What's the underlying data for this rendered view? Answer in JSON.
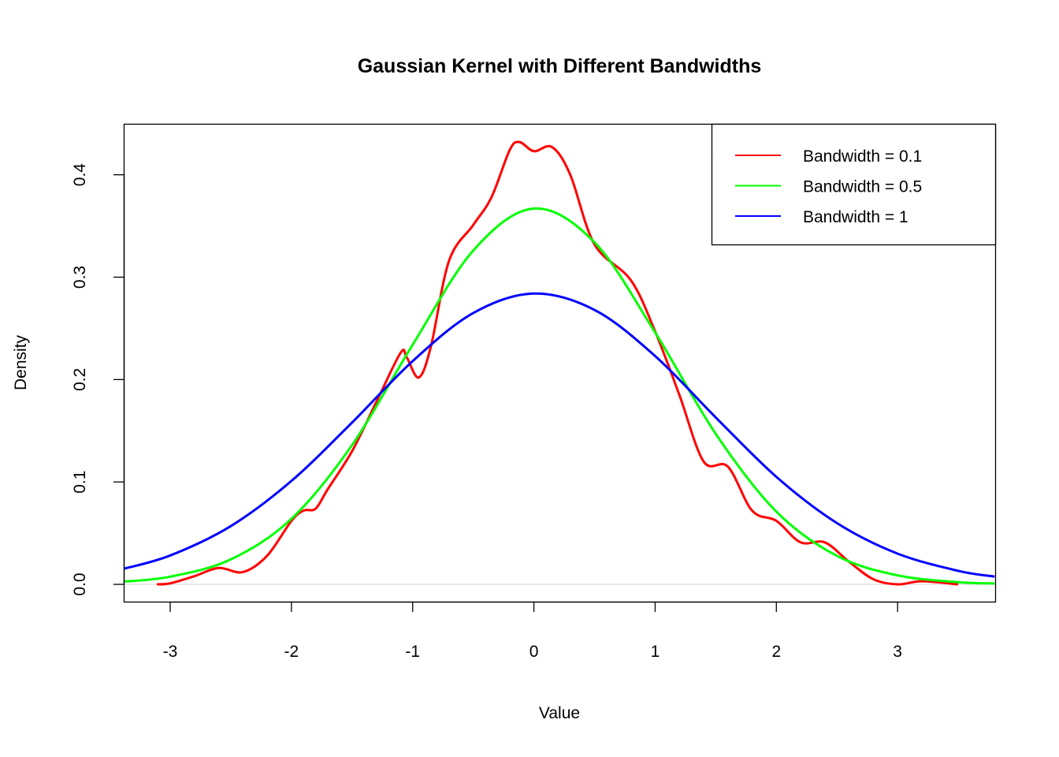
{
  "chart_data": {
    "type": "line",
    "title": "Gaussian Kernel with Different Bandwidths",
    "xlabel": "Value",
    "ylabel": "Density",
    "xlim": [
      -3.377,
      3.805
    ],
    "ylim": [
      -0.0169,
      0.449
    ],
    "xticks": [
      -3,
      -2,
      -1,
      0,
      1,
      2,
      3
    ],
    "xtick_labels": [
      "-3",
      "-2",
      "-1",
      "0",
      "1",
      "2",
      "3"
    ],
    "yticks": [
      0,
      0.1,
      0.2,
      0.3,
      0.4
    ],
    "ytick_labels": [
      "0.0",
      "0.1",
      "0.2",
      "0.3",
      "0.4"
    ],
    "grid": false,
    "reference_line_y": 0,
    "legend_position": "top-right",
    "series": [
      {
        "name": "Bandwidth = 0.1",
        "color": "#ff0000",
        "x": [
          -3.11,
          -3.0,
          -2.8,
          -2.6,
          -2.4,
          -2.2,
          -2.0,
          -1.9,
          -1.8,
          -1.7,
          -1.5,
          -1.3,
          -1.1,
          -1.05,
          -0.95,
          -0.85,
          -0.7,
          -0.5,
          -0.35,
          -0.2,
          -0.12,
          0.0,
          0.15,
          0.3,
          0.5,
          0.8,
          1.0,
          1.2,
          1.4,
          1.6,
          1.8,
          2.0,
          2.2,
          2.4,
          2.6,
          2.8,
          3.0,
          3.2,
          3.5
        ],
        "y": [
          0.0,
          0.001,
          0.008,
          0.016,
          0.012,
          0.028,
          0.062,
          0.072,
          0.074,
          0.093,
          0.13,
          0.178,
          0.226,
          0.222,
          0.202,
          0.232,
          0.316,
          0.351,
          0.378,
          0.424,
          0.432,
          0.423,
          0.427,
          0.4,
          0.332,
          0.297,
          0.247,
          0.185,
          0.12,
          0.115,
          0.072,
          0.062,
          0.041,
          0.041,
          0.022,
          0.005,
          0.0,
          0.003,
          0.0
        ]
      },
      {
        "name": "Bandwidth = 0.5",
        "color": "#00ff00",
        "x": [
          -3.4,
          -3.0,
          -2.5,
          -2.0,
          -1.5,
          -1.0,
          -0.5,
          0.0,
          0.5,
          1.0,
          1.5,
          2.0,
          2.5,
          3.0,
          3.5,
          3.8
        ],
        "y": [
          0.0025,
          0.0075,
          0.0244,
          0.064,
          0.136,
          0.234,
          0.326,
          0.367,
          0.334,
          0.246,
          0.147,
          0.071,
          0.0278,
          0.0088,
          0.0022,
          0.0009
        ]
      },
      {
        "name": "Bandwidth = 1",
        "color": "#0000ff",
        "x": [
          -3.4,
          -3.0,
          -2.5,
          -2.0,
          -1.5,
          -1.0,
          -0.5,
          0.0,
          0.5,
          1.0,
          1.5,
          2.0,
          2.5,
          3.0,
          3.5,
          3.8
        ],
        "y": [
          0.0147,
          0.0282,
          0.0569,
          0.101,
          0.158,
          0.218,
          0.265,
          0.284,
          0.268,
          0.223,
          0.163,
          0.105,
          0.0598,
          0.03,
          0.0132,
          0.0076
        ]
      }
    ]
  }
}
